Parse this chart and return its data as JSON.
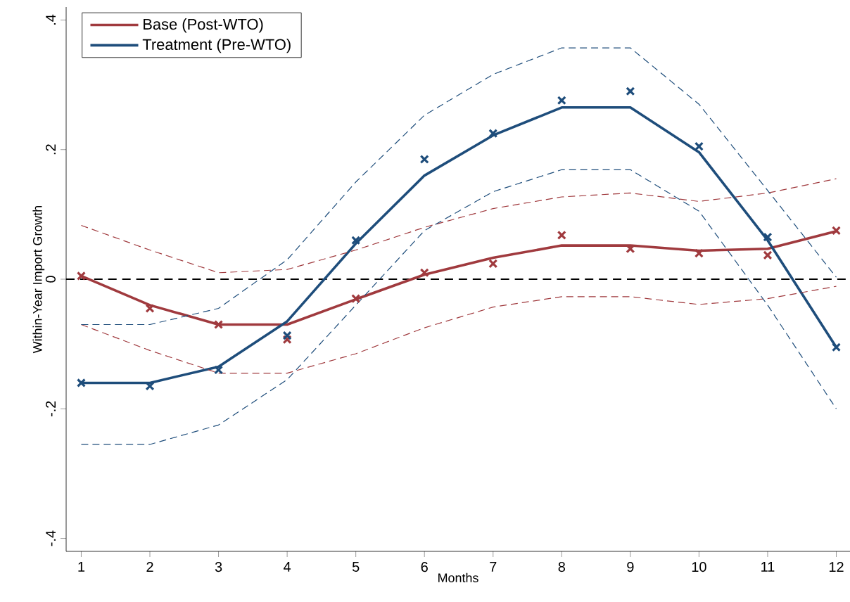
{
  "chart_data": {
    "type": "line",
    "xlabel": "Months",
    "ylabel": "Within-Year Import Growth",
    "x": [
      1,
      2,
      3,
      4,
      5,
      6,
      7,
      8,
      9,
      10,
      11,
      12
    ],
    "xlim": [
      0.78,
      12.2
    ],
    "xticks": [
      1,
      2,
      3,
      4,
      5,
      6,
      7,
      8,
      9,
      10,
      11,
      12
    ],
    "ylim": [
      -0.42,
      0.42
    ],
    "yticks": [
      {
        "value": -0.4,
        "label": "-.4"
      },
      {
        "value": -0.2,
        "label": "-.2"
      },
      0,
      {
        "value": 0.2,
        "label": ".2"
      },
      {
        "value": 0.4,
        "label": ".4"
      }
    ],
    "grid": false,
    "legend": "top left",
    "marker": "none",
    "ref_lines": [
      {
        "axis": "y",
        "value": 0,
        "color": "#000000",
        "line_style": "dashed"
      }
    ],
    "series": [
      {
        "name": "Base (Post-WTO)",
        "color": "#a03a3e",
        "line_style": "solid",
        "values": [
          0.005,
          -0.04,
          -0.07,
          -0.07,
          -0.031,
          0.007,
          0.033,
          0.052,
          0.052,
          0.044,
          0.047,
          0.074
        ]
      },
      {
        "name": "Treatment (Pre-WTO)",
        "color": "#1e4d7b",
        "line_style": "solid",
        "values": [
          -0.16,
          -0.16,
          -0.135,
          -0.065,
          0.055,
          0.16,
          0.222,
          0.265,
          0.265,
          0.196,
          0.06,
          -0.105
        ]
      },
      {
        "color": "#a03a3e",
        "line_style": "dashed",
        "values": [
          -0.07,
          -0.11,
          -0.145,
          -0.145,
          -0.115,
          -0.075,
          -0.043,
          -0.027,
          -0.027,
          -0.039,
          -0.03,
          -0.011
        ]
      },
      {
        "color": "#a03a3e",
        "line_style": "dashed",
        "values": [
          0.083,
          0.045,
          0.01,
          0.015,
          0.045,
          0.08,
          0.109,
          0.127,
          0.133,
          0.12,
          0.133,
          0.155
        ]
      },
      {
        "color": "#1e4d7b",
        "line_style": "dashed",
        "values": [
          -0.255,
          -0.255,
          -0.225,
          -0.155,
          -0.04,
          0.075,
          0.135,
          0.169,
          0.169,
          0.105,
          -0.04,
          -0.2
        ]
      },
      {
        "color": "#1e4d7b",
        "line_style": "dashed",
        "values": [
          -0.07,
          -0.07,
          -0.045,
          0.03,
          0.15,
          0.253,
          0.316,
          0.357,
          0.357,
          0.27,
          0.137,
          0.003
        ]
      },
      {
        "type": "scatter",
        "color": "#a03a3e",
        "marker": "cross",
        "values": [
          0.005,
          -0.045,
          -0.07,
          -0.093,
          -0.03,
          0.01,
          0.024,
          0.068,
          0.047,
          0.04,
          0.037,
          0.075
        ]
      },
      {
        "type": "scatter",
        "color": "#1e4d7b",
        "marker": "cross",
        "values": [
          -0.16,
          -0.165,
          -0.14,
          -0.087,
          0.06,
          0.185,
          0.225,
          0.276,
          0.29,
          0.205,
          0.065,
          -0.105
        ]
      }
    ]
  }
}
